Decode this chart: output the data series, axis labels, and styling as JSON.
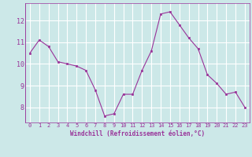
{
  "x": [
    0,
    1,
    2,
    3,
    4,
    5,
    6,
    7,
    8,
    9,
    10,
    11,
    12,
    13,
    14,
    15,
    16,
    17,
    18,
    19,
    20,
    21,
    22,
    23
  ],
  "y": [
    10.5,
    11.1,
    10.8,
    10.1,
    10.0,
    9.9,
    9.7,
    8.8,
    7.6,
    7.7,
    8.6,
    8.6,
    9.7,
    10.6,
    12.3,
    12.4,
    11.8,
    11.2,
    10.7,
    9.5,
    9.1,
    8.6,
    8.7,
    8.0
  ],
  "line_color": "#993399",
  "marker_color": "#993399",
  "bg_color": "#cce8e8",
  "grid_color": "#ffffff",
  "xlabel": "Windchill (Refroidissement éolien,°C)",
  "xlabel_color": "#993399",
  "tick_color": "#993399",
  "ylim": [
    7.3,
    12.8
  ],
  "xlim": [
    -0.5,
    23.5
  ],
  "yticks": [
    8,
    9,
    10,
    11,
    12
  ],
  "xticks": [
    0,
    1,
    2,
    3,
    4,
    5,
    6,
    7,
    8,
    9,
    10,
    11,
    12,
    13,
    14,
    15,
    16,
    17,
    18,
    19,
    20,
    21,
    22,
    23
  ]
}
